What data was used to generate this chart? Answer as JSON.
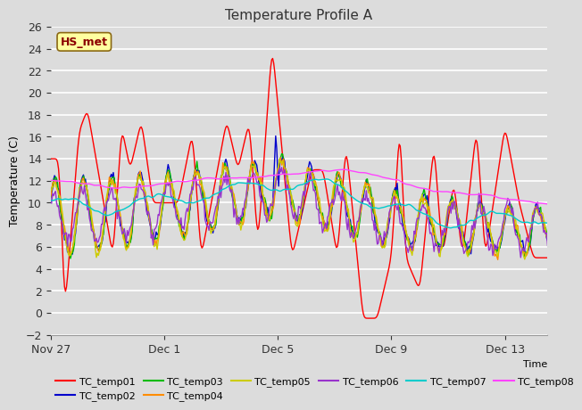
{
  "title": "Temperature Profile A",
  "xlabel": "Time",
  "ylabel": "Temperature (C)",
  "ylim": [
    -2,
    26
  ],
  "yticks": [
    -2,
    0,
    2,
    4,
    6,
    8,
    10,
    12,
    14,
    16,
    18,
    20,
    22,
    24,
    26
  ],
  "annotation_text": "HS_met",
  "annotation_color": "#8B0000",
  "annotation_bg": "#FFFFA0",
  "annotation_border": "#8B6914",
  "x_tick_labels": [
    "Nov 27",
    "Dec 1",
    "Dec 5",
    "Dec 9",
    "Dec 13"
  ],
  "x_tick_days": [
    0,
    4,
    8,
    12,
    16
  ],
  "legend_entries": [
    "TC_temp01",
    "TC_temp02",
    "TC_temp03",
    "TC_temp04",
    "TC_temp05",
    "TC_temp06",
    "TC_temp07",
    "TC_temp08"
  ],
  "line_colors": [
    "#FF0000",
    "#0000CC",
    "#00BB00",
    "#FF8C00",
    "#CCCC00",
    "#9933CC",
    "#00CCCC",
    "#FF44FF"
  ],
  "bg_color": "#DCDCDC",
  "plot_bg": "#DCDCDC",
  "grid_color": "#FFFFFF",
  "title_color": "#333333",
  "n_points": 500,
  "total_days": 17.5
}
